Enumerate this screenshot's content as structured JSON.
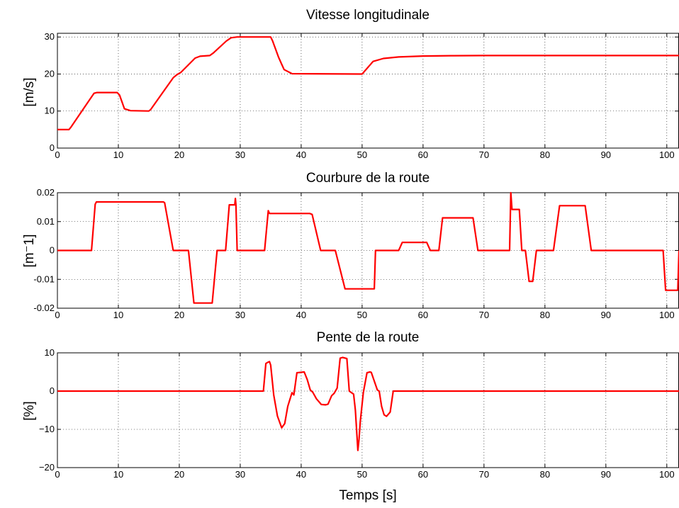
{
  "chart_data": [
    {
      "type": "line",
      "title": "Vitesse longitudinale",
      "xlabel": "",
      "ylabel": "[m/s]",
      "xlim": [
        0,
        102
      ],
      "ylim": [
        0,
        31
      ],
      "grid": true,
      "xticks": [
        0,
        10,
        20,
        30,
        40,
        50,
        60,
        70,
        80,
        90,
        100
      ],
      "yticks": [
        0,
        10,
        20,
        30
      ],
      "ytick_labels": [
        "0",
        "10",
        "20",
        "30"
      ],
      "color": "#ff0000",
      "series": [
        {
          "x": [
            0,
            1.9,
            2.2,
            6,
            6.5,
            9.8,
            10.2,
            11,
            12,
            15,
            15.3,
            19,
            19.6,
            20.3,
            22.6,
            23.4,
            25,
            25.6,
            27.7,
            28.5,
            29.5,
            35,
            35.3,
            36.3,
            37.2,
            38.5,
            50,
            51.8,
            53.5,
            56,
            60,
            65,
            70,
            102
          ],
          "y": [
            5,
            5,
            5.6,
            14.8,
            15,
            15,
            14.3,
            10.6,
            10.1,
            10,
            10.4,
            19,
            19.8,
            20.5,
            24.3,
            24.8,
            25,
            25.7,
            28.9,
            29.8,
            30,
            30,
            29,
            24.5,
            21.2,
            20.1,
            20,
            23.4,
            24.2,
            24.6,
            24.85,
            24.95,
            25,
            25
          ]
        }
      ]
    },
    {
      "type": "line",
      "title": "Courbure de la route",
      "xlabel": "",
      "ylabel": "[m⁻1]",
      "xlim": [
        0,
        102
      ],
      "ylim": [
        -0.02,
        0.02
      ],
      "grid": true,
      "xticks": [
        0,
        10,
        20,
        30,
        40,
        50,
        60,
        70,
        80,
        90,
        100
      ],
      "yticks": [
        -0.02,
        -0.01,
        0,
        0.01,
        0.02
      ],
      "ytick_labels": [
        "-0.02",
        "-0.01",
        "0",
        "0.01",
        "0.02"
      ],
      "color": "#ff0000",
      "series": [
        {
          "x": [
            0,
            5.6,
            6.2,
            6.4,
            17.4,
            17.6,
            19,
            21.5,
            22.4,
            25.4,
            26.2,
            27.6,
            28.2,
            29.1,
            29.2,
            29.3,
            29.5,
            30,
            34,
            34.6,
            34.8,
            41.4,
            41.8,
            43.2,
            45.6,
            47.2,
            52,
            52.2,
            56,
            56.6,
            60.6,
            61.2,
            62.6,
            63.2,
            68.2,
            69,
            72,
            74.2,
            74.4,
            74.6,
            75,
            75.8,
            76.2,
            76.8,
            77.4,
            78,
            78.6,
            81.4,
            82.4,
            86.6,
            87.6,
            99.4,
            99.8,
            101.4,
            101.8,
            102
          ],
          "y": [
            0,
            0,
            0.016,
            0.0168,
            0.0168,
            0.0165,
            0,
            0,
            -0.0182,
            -0.0182,
            0,
            0,
            0.0158,
            0.0158,
            0.018,
            0.0158,
            0,
            0,
            0,
            0.0138,
            0.0128,
            0.0128,
            0.0125,
            0,
            0,
            -0.0133,
            -0.0133,
            0,
            0,
            0.0028,
            0.0028,
            0,
            0,
            0.0113,
            0.0113,
            0,
            0,
            0,
            0.02,
            0.0142,
            0.0142,
            0.0142,
            0,
            0,
            -0.0107,
            -0.0107,
            0,
            0,
            0.0155,
            0.0155,
            0,
            0,
            -0.0138,
            -0.0138,
            -0.0138,
            0
          ]
        }
      ]
    },
    {
      "type": "line",
      "title": "Pente de la route",
      "xlabel": "Temps [s]",
      "ylabel": "[%]",
      "xlim": [
        0,
        102
      ],
      "ylim": [
        -20,
        10
      ],
      "grid": true,
      "xticks": [
        0,
        10,
        20,
        30,
        40,
        50,
        60,
        70,
        80,
        90,
        100
      ],
      "yticks": [
        -20,
        -10,
        0,
        10
      ],
      "ytick_labels": [
        "−20",
        "−10",
        "0",
        "10"
      ],
      "color": "#ff0000",
      "series": [
        {
          "x": [
            0,
            33.8,
            34.2,
            34.5,
            34.8,
            35.0,
            35.5,
            36.1,
            36.8,
            37.3,
            37.8,
            38.5,
            38.8,
            39.3,
            40.5,
            41.0,
            41.5,
            41.9,
            42.5,
            43.3,
            44.0,
            44.4,
            45.0,
            45.4,
            45.9,
            46.4,
            46.8,
            47.5,
            47.9,
            48.6,
            48.9,
            49.3,
            49.5,
            49.7,
            50.2,
            50.8,
            51.3,
            51.5,
            52.5,
            52.8,
            53.2,
            53.6,
            54.0,
            54.6,
            55.1,
            102
          ],
          "y": [
            0,
            0,
            7.2,
            7.5,
            7.7,
            6.8,
            -1,
            -6.5,
            -9.6,
            -8.5,
            -4,
            -0.4,
            -1,
            4.8,
            5,
            3,
            0.3,
            -0.3,
            -2,
            -3.5,
            -3.6,
            -3.4,
            -1.2,
            -0.6,
            0.8,
            8.6,
            8.8,
            8.5,
            0,
            -0.8,
            -5,
            -15.5,
            -12.5,
            -8,
            -0.4,
            4.8,
            5,
            4.9,
            0.3,
            0,
            -4,
            -6.2,
            -6.6,
            -5.5,
            0,
            0
          ]
        }
      ]
    }
  ]
}
